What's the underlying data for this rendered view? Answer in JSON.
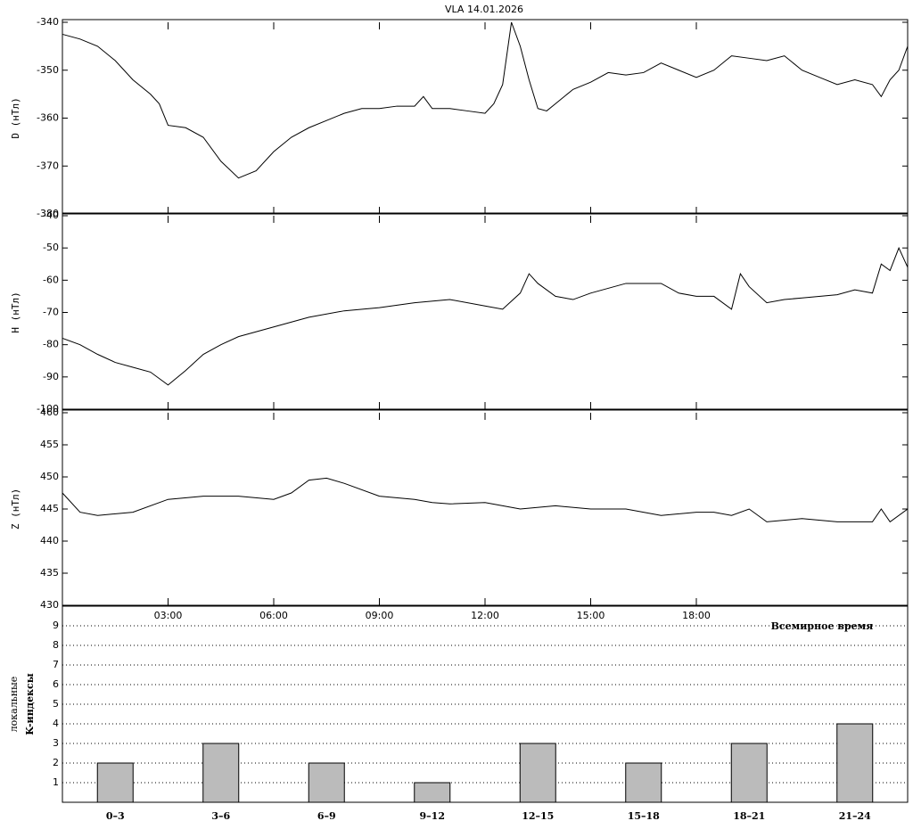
{
  "chart_data": [
    {
      "type": "line",
      "title": "VLA   14.01.2026",
      "ylabel": "D (нТл)",
      "color": "#000000",
      "x": [
        0,
        0.5,
        1,
        1.5,
        2,
        2.5,
        2.75,
        3,
        3.5,
        4,
        4.5,
        5,
        5.5,
        6,
        6.5,
        7,
        7.5,
        8,
        8.5,
        9,
        9.5,
        10,
        10.25,
        10.5,
        11,
        11.5,
        12,
        12.25,
        12.5,
        12.75,
        13,
        13.25,
        13.5,
        13.75,
        14,
        14.5,
        15,
        15.5,
        16,
        16.5,
        17,
        17.5,
        18,
        18.5,
        19,
        19.5,
        20,
        20.5,
        21,
        21.5,
        22,
        22.5,
        23,
        23.25,
        23.5,
        23.75,
        24
      ],
      "values": [
        -342.5,
        -343.5,
        -345,
        -348,
        -352,
        -355,
        -357,
        -361.5,
        -362,
        -364,
        -369,
        -372.5,
        -371,
        -367,
        -364,
        -362,
        -360.5,
        -359,
        -358,
        -358,
        -357.5,
        -357.5,
        -355.5,
        -358,
        -358,
        -358.5,
        -359,
        -357,
        -353,
        -340,
        -345,
        -352,
        -358,
        -358.5,
        -357,
        -354,
        -352.5,
        -350.5,
        -351,
        -350.5,
        -348.5,
        -350,
        -351.5,
        -350,
        -347,
        -347.5,
        -348,
        -347,
        -350,
        -351.5,
        -353,
        -352,
        -353,
        -355.5,
        -352,
        -350,
        -345
      ],
      "xlim": [
        0,
        24
      ],
      "ylim": [
        -380,
        -340
      ],
      "yticks": [
        -380,
        -370,
        -360,
        -350,
        -340
      ]
    },
    {
      "type": "line",
      "ylabel": "H (нТл)",
      "color": "#000000",
      "x": [
        0,
        0.5,
        1,
        1.5,
        2,
        2.5,
        3,
        3.5,
        4,
        4.5,
        5,
        6,
        7,
        8,
        9,
        10,
        11,
        12,
        12.5,
        13,
        13.25,
        13.5,
        14,
        14.5,
        15,
        16,
        17,
        17.5,
        18,
        18.5,
        19,
        19.25,
        19.5,
        20,
        20.5,
        21,
        22,
        22.5,
        23,
        23.25,
        23.5,
        23.75,
        24
      ],
      "values": [
        -78,
        -80,
        -83,
        -85.5,
        -87,
        -88.5,
        -92.5,
        -88,
        -83,
        -80,
        -77.5,
        -74.5,
        -71.5,
        -69.5,
        -68.5,
        -67,
        -66,
        -68,
        -69,
        -64,
        -58,
        -61,
        -65,
        -66,
        -64,
        -61,
        -61,
        -64,
        -65,
        -65,
        -69,
        -58,
        -62,
        -67,
        -66,
        -65.5,
        -64.5,
        -63,
        -64,
        -55,
        -57,
        -50,
        -56
      ],
      "xlim": [
        0,
        24
      ],
      "ylim": [
        -100,
        -40
      ],
      "yticks": [
        -100,
        -90,
        -80,
        -70,
        -60,
        -50,
        -40
      ]
    },
    {
      "type": "line",
      "ylabel": "Z (нТл)",
      "color": "#000000",
      "x": [
        0,
        0.5,
        1,
        2,
        3,
        4,
        5,
        6,
        6.5,
        7,
        7.5,
        8,
        9,
        10,
        10.5,
        11,
        12,
        12.5,
        13,
        14,
        15,
        16,
        16.5,
        17,
        18,
        18.5,
        19,
        19.5,
        20,
        21,
        22,
        23,
        23.25,
        23.5,
        24
      ],
      "values": [
        447.5,
        444.5,
        444,
        444.5,
        446.5,
        447,
        447,
        446.5,
        447.5,
        449.5,
        449.8,
        449,
        447,
        446.5,
        446,
        445.8,
        446,
        445.5,
        445,
        445.5,
        445,
        445,
        444.5,
        444,
        444.5,
        444.5,
        444,
        445,
        443,
        443.5,
        443,
        443,
        445,
        443,
        445
      ],
      "xlim": [
        0,
        24
      ],
      "ylim": [
        430,
        460
      ],
      "yticks": [
        430,
        435,
        440,
        445,
        450,
        455,
        460
      ],
      "xlabel": "Всемирное время",
      "xticks": [
        {
          "value": 3,
          "label": "03:00"
        },
        {
          "value": 6,
          "label": "06:00"
        },
        {
          "value": 9,
          "label": "09:00"
        },
        {
          "value": 12,
          "label": "12:00"
        },
        {
          "value": 15,
          "label": "15:00"
        },
        {
          "value": 18,
          "label": "18:00"
        }
      ]
    },
    {
      "type": "bar",
      "ylabel": [
        "локальные",
        "K-индексы"
      ],
      "color": "#bbbbbb",
      "grid": true,
      "categories": [
        "0–3",
        "3–6",
        "6–9",
        "9–12",
        "12–15",
        "15–18",
        "18–21",
        "21–24"
      ],
      "values": [
        2,
        3,
        2,
        1,
        3,
        2,
        3,
        4
      ],
      "ylim": [
        0,
        10
      ],
      "yticks": [
        1,
        2,
        3,
        4,
        5,
        6,
        7,
        8,
        9
      ]
    }
  ]
}
